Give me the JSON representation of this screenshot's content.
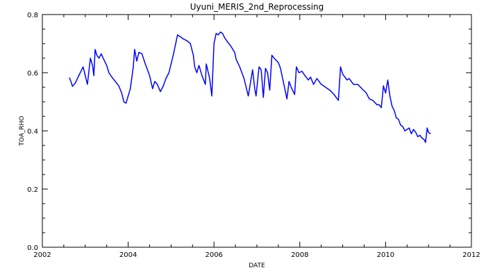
{
  "chart_data": {
    "type": "line",
    "title": "Uyuni_MERIS_2nd_Reprocessing",
    "xlabel": "DATE",
    "ylabel": "TOA_RHO",
    "xlim": [
      2002,
      2012
    ],
    "ylim": [
      0.0,
      0.8
    ],
    "x_ticks": [
      "2002",
      "2004",
      "2006",
      "2008",
      "2010",
      "2012"
    ],
    "y_ticks": [
      "0.0",
      "0.2",
      "0.4",
      "0.6",
      "0.8"
    ],
    "grid": false,
    "line_color": "#0000ff",
    "series": [
      {
        "x": [
          2002.63,
          2002.67,
          2002.7,
          2002.77,
          2002.85,
          2002.95,
          2003.05,
          2003.12,
          2003.17,
          2003.2,
          2003.23,
          2003.27,
          2003.32,
          2003.37,
          2003.45,
          2003.5,
          2003.55,
          2003.62,
          2003.7,
          2003.78,
          2003.85,
          2003.9,
          2003.95,
          2004.05,
          2004.12,
          2004.15,
          2004.2,
          2004.25,
          2004.32,
          2004.4,
          2004.5,
          2004.57,
          2004.62,
          2004.68,
          2004.75,
          2004.82,
          2004.88,
          2004.95,
          2005.05,
          2005.15,
          2005.25,
          2005.3,
          2005.37,
          2005.45,
          2005.52,
          2005.55,
          2005.6,
          2005.65,
          2005.72,
          2005.8,
          2005.82,
          2005.9,
          2005.95,
          2006.0,
          2006.05,
          2006.1,
          2006.15,
          2006.2,
          2006.25,
          2006.32,
          2006.4,
          2006.48,
          2006.52,
          2006.6,
          2006.7,
          2006.8,
          2006.9,
          2006.95,
          2006.98,
          2007.05,
          2007.1,
          2007.15,
          2007.2,
          2007.25,
          2007.3,
          2007.35,
          2007.4,
          2007.5,
          2007.55,
          2007.6,
          2007.7,
          2007.75,
          2007.8,
          2007.88,
          2007.92,
          2007.98,
          2008.05,
          2008.12,
          2008.2,
          2008.25,
          2008.32,
          2008.4,
          2008.5,
          2008.6,
          2008.7,
          2008.8,
          2008.9,
          2008.95,
          2009.0,
          2009.1,
          2009.15,
          2009.25,
          2009.35,
          2009.45,
          2009.55,
          2009.62,
          2009.7,
          2009.8,
          2009.85,
          2009.9,
          2009.95,
          2010.0,
          2010.05,
          2010.1,
          2010.15,
          2010.2,
          2010.25,
          2010.3,
          2010.35,
          2010.4,
          2010.45,
          2010.5,
          2010.55,
          2010.6,
          2010.65,
          2010.7,
          2010.75,
          2010.8,
          2010.85,
          2010.9,
          2010.93,
          2010.97,
          2011.0,
          2011.05
        ],
        "y": [
          0.583,
          0.568,
          0.553,
          0.565,
          0.59,
          0.62,
          0.56,
          0.65,
          0.625,
          0.59,
          0.68,
          0.66,
          0.65,
          0.665,
          0.64,
          0.625,
          0.6,
          0.585,
          0.57,
          0.555,
          0.53,
          0.5,
          0.495,
          0.545,
          0.62,
          0.68,
          0.64,
          0.67,
          0.665,
          0.63,
          0.59,
          0.545,
          0.57,
          0.56,
          0.535,
          0.555,
          0.58,
          0.6,
          0.66,
          0.73,
          0.72,
          0.715,
          0.71,
          0.7,
          0.66,
          0.62,
          0.6,
          0.625,
          0.59,
          0.56,
          0.63,
          0.58,
          0.52,
          0.7,
          0.735,
          0.73,
          0.74,
          0.735,
          0.72,
          0.705,
          0.69,
          0.67,
          0.645,
          0.62,
          0.58,
          0.52,
          0.61,
          0.545,
          0.52,
          0.62,
          0.61,
          0.515,
          0.615,
          0.6,
          0.54,
          0.66,
          0.65,
          0.635,
          0.615,
          0.58,
          0.51,
          0.57,
          0.55,
          0.525,
          0.62,
          0.6,
          0.605,
          0.59,
          0.575,
          0.585,
          0.56,
          0.58,
          0.56,
          0.55,
          0.54,
          0.525,
          0.505,
          0.62,
          0.595,
          0.575,
          0.58,
          0.56,
          0.56,
          0.545,
          0.53,
          0.51,
          0.505,
          0.49,
          0.49,
          0.48,
          0.555,
          0.53,
          0.575,
          0.52,
          0.485,
          0.47,
          0.445,
          0.44,
          0.42,
          0.415,
          0.4,
          0.405,
          0.41,
          0.39,
          0.405,
          0.395,
          0.38,
          0.385,
          0.375,
          0.37,
          0.36,
          0.41,
          0.395,
          0.39
        ]
      }
    ]
  }
}
